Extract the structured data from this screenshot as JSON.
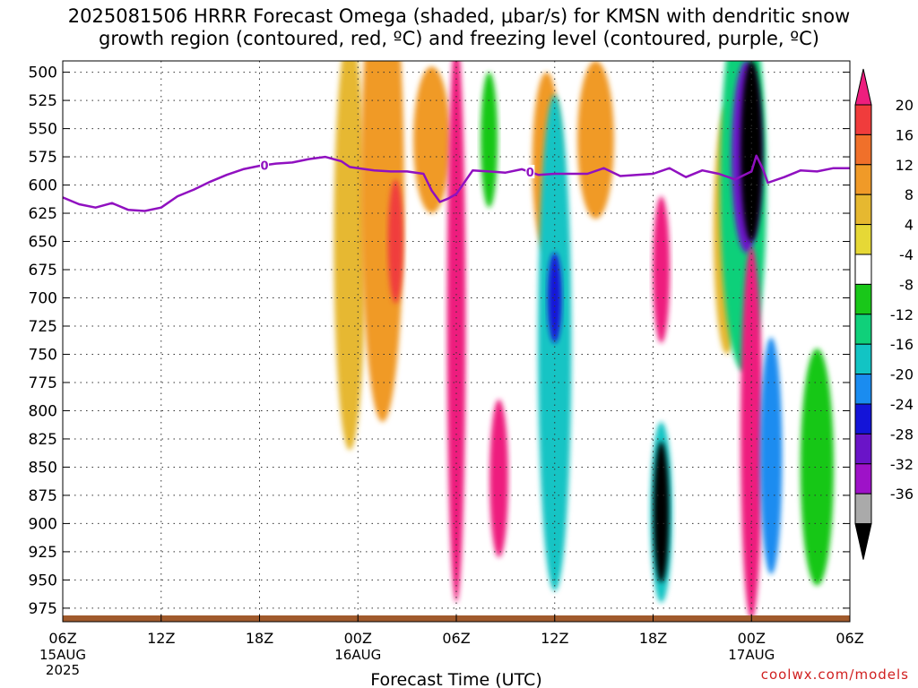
{
  "title_lines": [
    "2025081506 HRRR Forecast Omega (shaded, μbar/s) for KMSN with dendritic snow",
    "growth region (contoured, red, ºC) and freezing level (contoured, purple, ºC)"
  ],
  "credit": "coolwx.com/models",
  "colors": {
    "cb_levels_top_to_bottom": [
      "#ee1e7e",
      "#f03c3c",
      "#f0702a",
      "#f09a28",
      "#e6b830",
      "#e6d836",
      "#ffffff",
      "#19c719",
      "#10d07a",
      "#12c4c4",
      "#1a8cf0",
      "#1414d8",
      "#6a14c8",
      "#9e12c8",
      "#aaaaaa",
      "#000000"
    ],
    "freezing_line": "#9010c0",
    "ground": "#a05a2c"
  },
  "chart_data": {
    "type": "heatmap",
    "xlabel": "Forecast Time (UTC)",
    "ylim": [
      987,
      490
    ],
    "y_ticks": [
      500,
      525,
      550,
      575,
      600,
      625,
      650,
      675,
      700,
      725,
      750,
      775,
      800,
      825,
      850,
      875,
      900,
      925,
      950,
      975
    ],
    "x_range_hours": [
      0,
      48
    ],
    "x_ticks": [
      {
        "hour": 0,
        "label": "06Z",
        "sub": [
          "15AUG",
          "2025"
        ]
      },
      {
        "hour": 6,
        "label": "12Z",
        "sub": []
      },
      {
        "hour": 12,
        "label": "18Z",
        "sub": []
      },
      {
        "hour": 18,
        "label": "00Z",
        "sub": [
          "16AUG"
        ]
      },
      {
        "hour": 24,
        "label": "06Z",
        "sub": []
      },
      {
        "hour": 30,
        "label": "12Z",
        "sub": []
      },
      {
        "hour": 36,
        "label": "18Z",
        "sub": []
      },
      {
        "hour": 42,
        "label": "00Z",
        "sub": [
          "17AUG"
        ]
      },
      {
        "hour": 48,
        "label": "06Z",
        "sub": []
      }
    ],
    "colorbar_labels": [
      "20",
      "16",
      "12",
      "8",
      "4",
      "-4",
      "-8",
      "-12",
      "-16",
      "-20",
      "-24",
      "-28",
      "-32",
      "-36"
    ],
    "freezing_level": {
      "hours": [
        0,
        1,
        2,
        3,
        4,
        5,
        6,
        7,
        8,
        9,
        10,
        11,
        12,
        13,
        14,
        15,
        16,
        17,
        17.5,
        18,
        19,
        20,
        21,
        22,
        22.5,
        23,
        23.5,
        24,
        25,
        26,
        27,
        28,
        29,
        30,
        31,
        32,
        33,
        34,
        35,
        36,
        37,
        38,
        39,
        40,
        41,
        42,
        42.3,
        42.7,
        43,
        44,
        45,
        46,
        47,
        48
      ],
      "pressure": [
        611,
        617,
        620,
        616,
        622,
        623,
        620,
        610,
        604,
        597,
        591,
        586,
        583,
        581,
        580,
        577,
        575,
        579,
        584,
        585,
        587,
        588,
        588,
        590,
        605,
        615,
        612,
        608,
        587,
        588,
        589,
        586,
        591,
        590,
        590,
        590,
        585,
        592,
        591,
        590,
        585,
        593,
        587,
        590,
        595,
        588,
        574,
        586,
        598,
        593,
        587,
        588,
        585,
        585
      ],
      "contour_labels": [
        {
          "hour": 12.3,
          "text": "0"
        },
        {
          "hour": 28.5,
          "text": "0"
        }
      ]
    },
    "omega_features": [
      {
        "hour": 17.5,
        "p": 650,
        "w": 1.5,
        "h": 370,
        "value": 6
      },
      {
        "hour": 19.5,
        "p": 600,
        "w": 2.2,
        "h": 420,
        "value": 10
      },
      {
        "hour": 20.3,
        "p": 650,
        "w": 0.5,
        "h": 110,
        "value": 18
      },
      {
        "hour": 22.5,
        "p": 560,
        "w": 1.8,
        "h": 130,
        "value": 10
      },
      {
        "hour": 24.0,
        "p": 720,
        "w": 0.7,
        "h": 500,
        "value": 20
      },
      {
        "hour": 26.0,
        "p": 560,
        "w": 0.6,
        "h": 120,
        "value": -8
      },
      {
        "hour": 26.6,
        "p": 860,
        "w": 0.7,
        "h": 140,
        "value": 20
      },
      {
        "hour": 29.5,
        "p": 580,
        "w": 1.3,
        "h": 160,
        "value": 10
      },
      {
        "hour": 30.0,
        "p": 740,
        "w": 1.6,
        "h": 440,
        "value": -16
      },
      {
        "hour": 30.0,
        "p": 700,
        "w": 0.4,
        "h": 80,
        "value": -24
      },
      {
        "hour": 32.5,
        "p": 560,
        "w": 1.8,
        "h": 140,
        "value": 10
      },
      {
        "hour": 36.5,
        "p": 675,
        "w": 0.6,
        "h": 130,
        "value": 20
      },
      {
        "hour": 36.5,
        "p": 890,
        "w": 0.9,
        "h": 160,
        "value": -16
      },
      {
        "hour": 36.5,
        "p": 890,
        "w": 0.5,
        "h": 125,
        "value": -36
      },
      {
        "hour": 40.5,
        "p": 640,
        "w": 1.2,
        "h": 220,
        "value": 8
      },
      {
        "hour": 41.5,
        "p": 600,
        "w": 2.4,
        "h": 330,
        "value": -12
      },
      {
        "hour": 41.7,
        "p": 575,
        "w": 1.4,
        "h": 170,
        "value": -28
      },
      {
        "hour": 42.0,
        "p": 570,
        "w": 0.9,
        "h": 160,
        "value": -36
      },
      {
        "hour": 42.0,
        "p": 820,
        "w": 0.9,
        "h": 330,
        "value": 20
      },
      {
        "hour": 43.2,
        "p": 840,
        "w": 0.9,
        "h": 210,
        "value": -20
      },
      {
        "hour": 46.0,
        "p": 850,
        "w": 1.6,
        "h": 210,
        "value": -8
      }
    ]
  }
}
